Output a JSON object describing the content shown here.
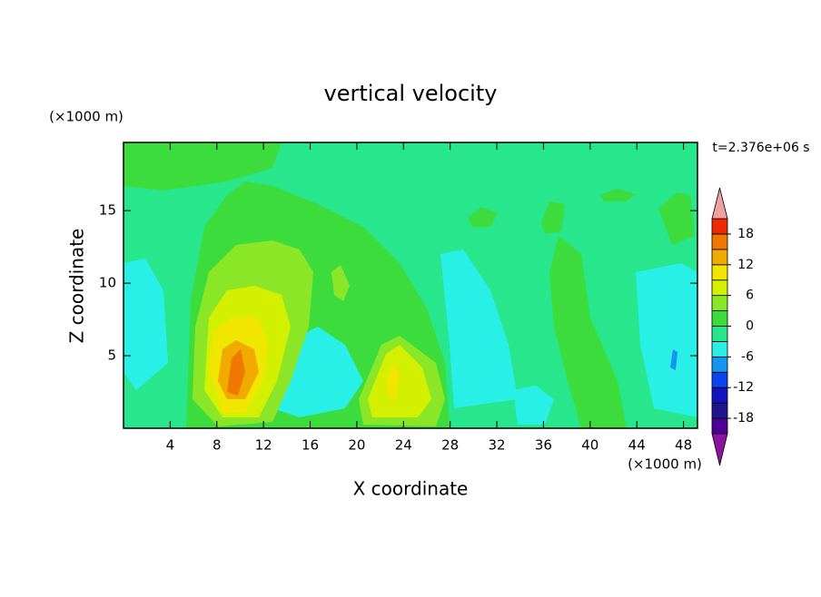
{
  "chart_data": {
    "type": "contour",
    "title": "vertical velocity",
    "x_label": "X coordinate",
    "y_label": "Z coordinate",
    "x_unit": "(×1000 m)",
    "y_unit": "(×1000 m)",
    "time_label": "t=2.376e+06 s",
    "xlim": [
      0,
      49.2
    ],
    "ylim": [
      0,
      19.7
    ],
    "xticks": [
      4,
      8,
      12,
      16,
      20,
      24,
      28,
      32,
      36,
      40,
      44,
      48
    ],
    "yticks": [
      5,
      10,
      15
    ],
    "levels": [
      -21,
      -18,
      -15,
      -12,
      -9,
      -6,
      -3,
      0,
      3,
      6,
      9,
      12,
      15,
      18,
      21
    ],
    "colors": [
      "#4b0096",
      "#1e148c",
      "#1414be",
      "#0a46f0",
      "#1496f0",
      "#28f0e6",
      "#28e68c",
      "#3cdc3c",
      "#8ce628",
      "#d2f000",
      "#f0e600",
      "#f0aa00",
      "#f07800",
      "#f02800"
    ],
    "over_color": "#f0a0a0",
    "under_color": "#8c14a0",
    "colorbar_ticks": [
      -18,
      -12,
      -6,
      0,
      6,
      12,
      18
    ]
  }
}
